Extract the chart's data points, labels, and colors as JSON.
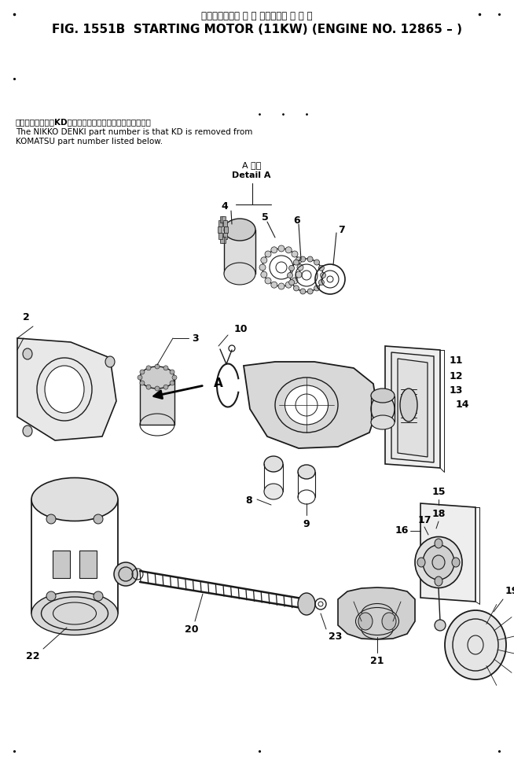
{
  "bg": "#f5f5f0",
  "title_jp": "スターティング モ ー タ　　　適 用 号 機",
  "title_en": "FIG. 1551B  STARTING MOTOR (11KW) (ENGINE NO. 12865 – )",
  "note_jp": "品番のメーカ記号KDを除いたものが日興電機の品番です。",
  "note_en1": "The NIKKO DENKI part number is that KD is removed from",
  "note_en2": "KOMATSU part number listed below.",
  "det_jp": "A 詳細",
  "det_en": "Detail A",
  "fig_w": 6.54,
  "fig_h": 9.74,
  "dpi": 100
}
